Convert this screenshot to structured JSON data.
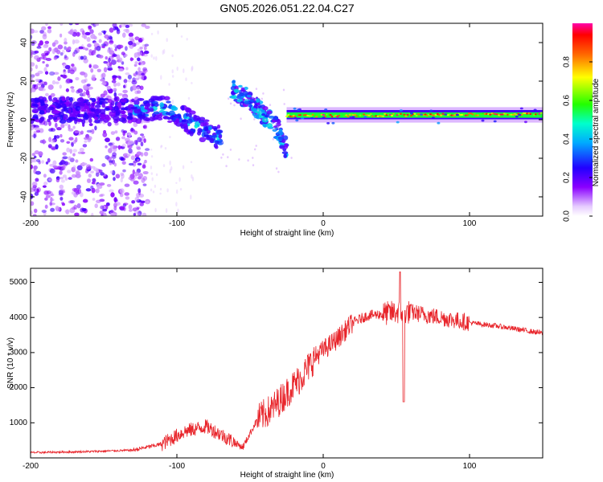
{
  "title": "GN05.2026.051.22.04.C27",
  "chart_data": [
    {
      "type": "heatmap",
      "xlabel": "Height of straight line (km)",
      "ylabel": "Frequency (Hz)",
      "xlim": [
        -200,
        150
      ],
      "ylim": [
        -50,
        50
      ],
      "xticks": [
        -200,
        -100,
        0,
        100
      ],
      "xtick_labels": [
        "-200",
        "-100",
        "0",
        "100"
      ],
      "yticks": [
        -40,
        -20,
        0,
        20,
        40
      ],
      "ytick_labels": [
        "-40",
        "-20",
        "0",
        "20",
        "40"
      ],
      "colorbar": {
        "label": "Normalized spectral amplitude",
        "range": [
          0,
          1
        ],
        "ticks": [
          0.0,
          0.2,
          0.4,
          0.6,
          0.8
        ],
        "tick_labels": [
          "0.0",
          "0.2",
          "0.4",
          "0.6",
          "0.8"
        ]
      },
      "features": [
        {
          "name": "noise-scatter",
          "x_range": [
            -200,
            -120
          ],
          "freq_range": [
            -50,
            50
          ]
        },
        {
          "name": "main-band",
          "x": [
            -200,
            -150,
            -130,
            -110,
            -100,
            -90,
            -80,
            -70
          ],
          "freq": [
            5,
            5,
            5,
            6,
            4,
            -2,
            -6,
            -10
          ]
        },
        {
          "name": "second-branch",
          "x": [
            -62,
            -50,
            -40,
            -30,
            -25
          ],
          "freq": [
            16,
            10,
            2,
            -6,
            -16
          ]
        },
        {
          "name": "stable-line",
          "x": [
            -25,
            150
          ],
          "freq": [
            2,
            3
          ]
        }
      ]
    },
    {
      "type": "line",
      "xlabel": "Height of straight line (km)",
      "ylabel": "SNR (10 * v/v)",
      "xlim": [
        -200,
        150
      ],
      "ylim": [
        0,
        5400
      ],
      "xticks": [
        -200,
        -100,
        0,
        100
      ],
      "xtick_labels": [
        "-200",
        "-100",
        "0",
        "100"
      ],
      "yticks": [
        1000,
        2000,
        3000,
        4000,
        5000
      ],
      "ytick_labels": [
        "1000",
        "2000",
        "3000",
        "4000",
        "5000"
      ],
      "series": [
        {
          "name": "SNR",
          "color": "#e8242a",
          "x": [
            -200,
            -160,
            -130,
            -110,
            -95,
            -80,
            -65,
            -55,
            -45,
            -35,
            -25,
            -15,
            -5,
            10,
            20,
            30,
            50,
            60,
            80,
            100,
            120,
            150
          ],
          "y": [
            150,
            180,
            220,
            400,
            750,
            900,
            550,
            300,
            1100,
            1400,
            1850,
            2300,
            2900,
            3400,
            3850,
            4050,
            4150,
            4150,
            4000,
            3850,
            3750,
            3550
          ]
        }
      ],
      "annotations": [
        {
          "x": 55,
          "y": 1600,
          "note": "dip"
        },
        {
          "x": 52,
          "y": 5300,
          "note": "spike"
        }
      ]
    }
  ],
  "colors": {
    "line": "#e8242a",
    "frame": "#000000",
    "scatter": "#7a1fe6"
  }
}
